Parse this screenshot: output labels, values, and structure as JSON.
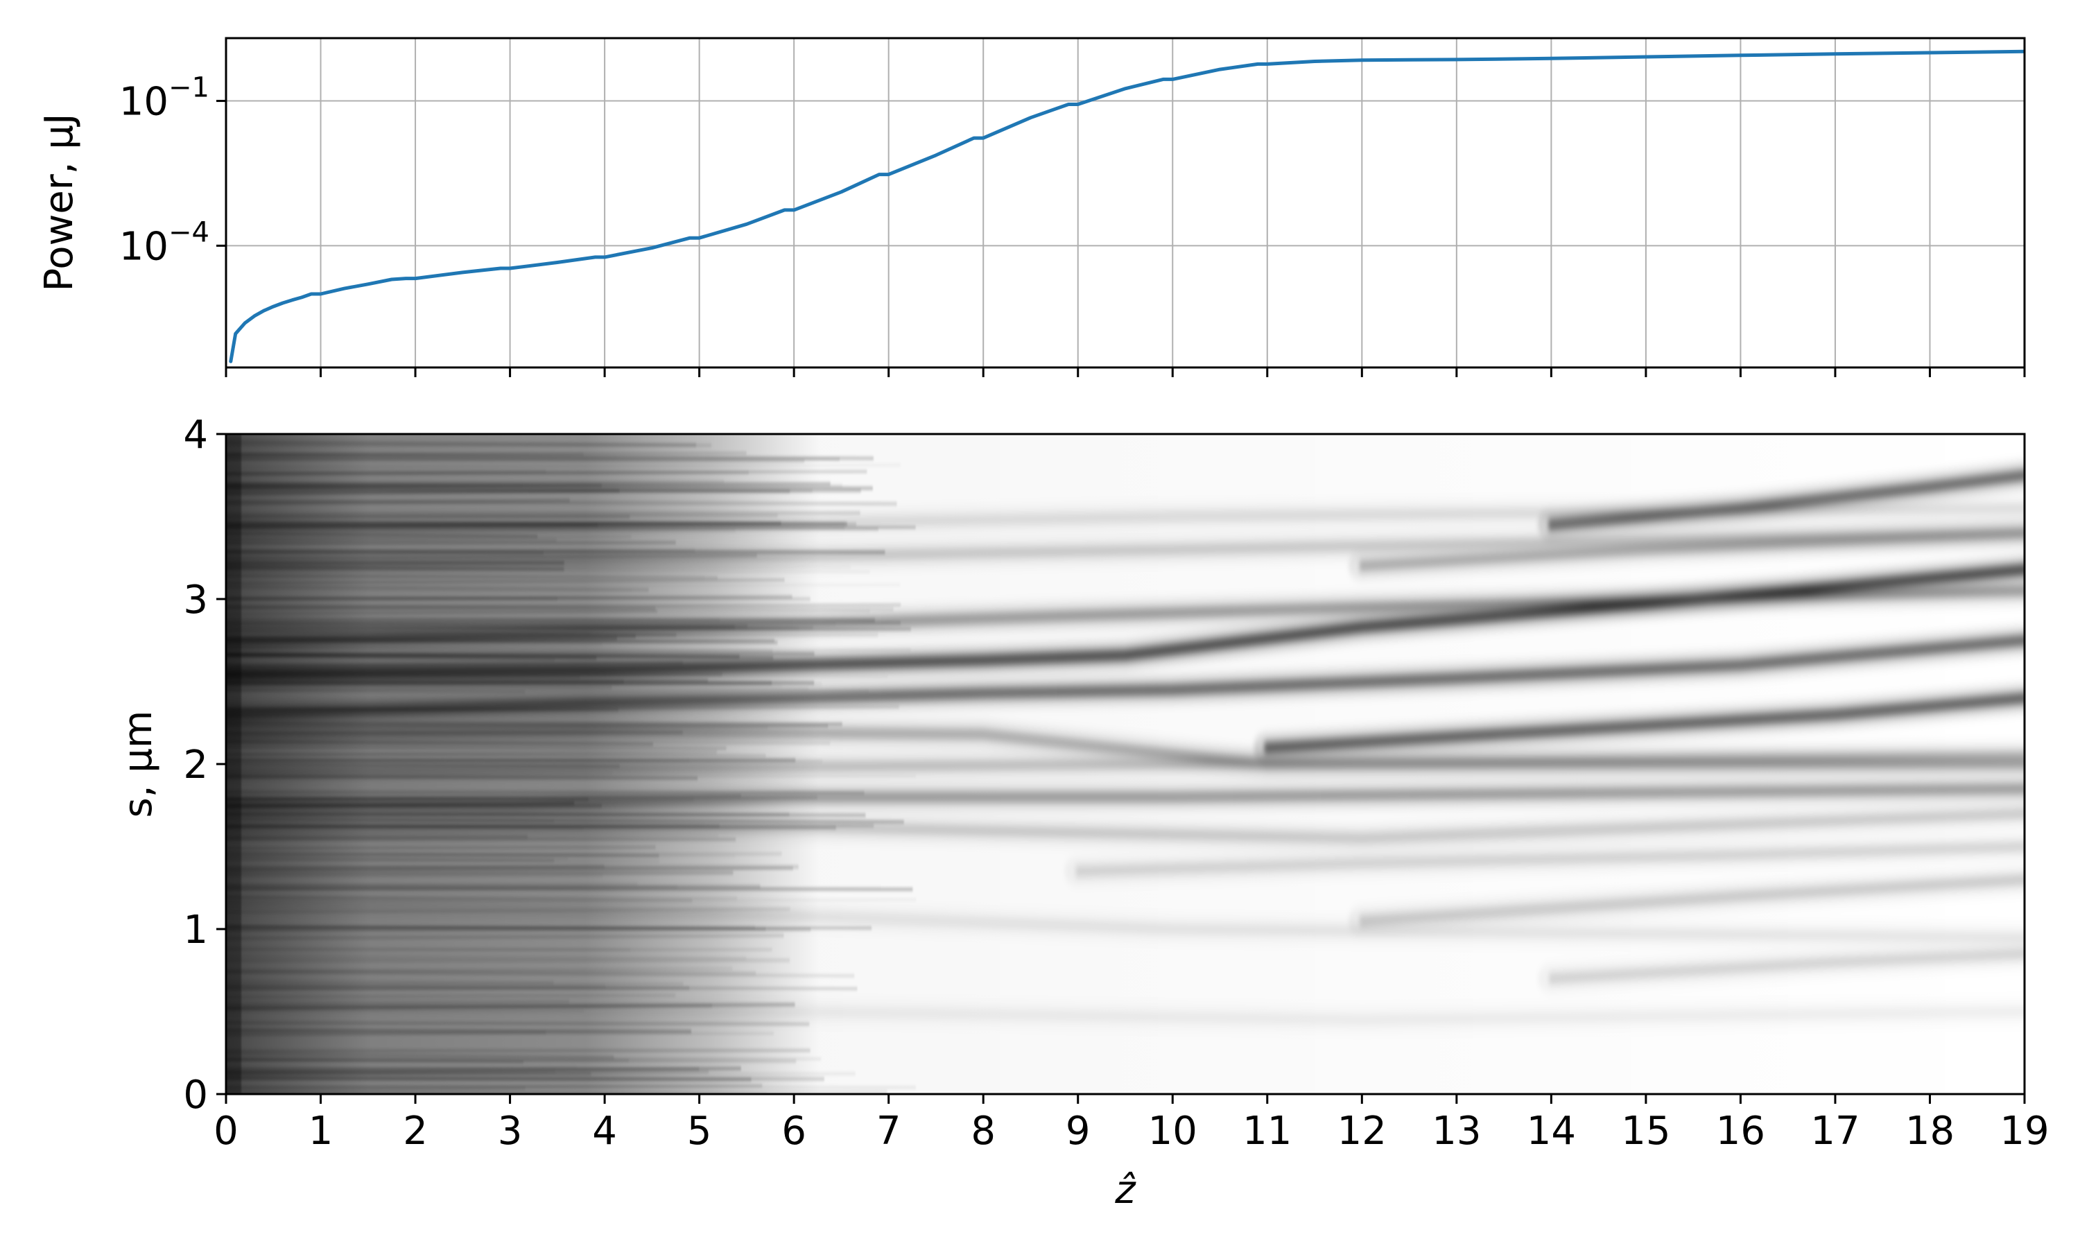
{
  "chart_data": [
    {
      "type": "line",
      "ylabel": "Power, μJ",
      "xlabel": "",
      "yscale": "log",
      "ylim": [
        3e-07,
        2.0
      ],
      "xlim": [
        0,
        19
      ],
      "grid": true,
      "y_ticks": [
        {
          "value": 0.1,
          "base": "10",
          "exp": "−1"
        },
        {
          "value": 0.0001,
          "base": "10",
          "exp": "−4"
        }
      ],
      "line_color": "#1f77b4",
      "series": [
        {
          "x": [
            0.05,
            0.1,
            0.2,
            0.3,
            0.4,
            0.5,
            0.6,
            0.7,
            0.8,
            0.9,
            1.0,
            1.25,
            1.5,
            1.75,
            1.9,
            2.0,
            2.5,
            2.9,
            3.0,
            3.5,
            3.9,
            4.0,
            4.5,
            4.9,
            5.0,
            5.5,
            5.9,
            6.0,
            6.5,
            6.9,
            7.0,
            7.5,
            7.9,
            8.0,
            8.5,
            8.9,
            9.0,
            9.5,
            9.9,
            10.0,
            10.5,
            10.9,
            11.0,
            11.5,
            12.0,
            13.0,
            14.0,
            15.0,
            16.0,
            17.0,
            18.0,
            19.0
          ],
          "y": [
            4e-07,
            1.5e-06,
            2.5e-06,
            3.5e-06,
            4.5e-06,
            5.5e-06,
            6.5e-06,
            7.5e-06,
            8.5e-06,
            1e-05,
            1e-05,
            1.3e-05,
            1.6e-05,
            2e-05,
            2.1e-05,
            2.1e-05,
            2.8e-05,
            3.4e-05,
            3.4e-05,
            4.5e-05,
            5.8e-05,
            5.8e-05,
            9e-05,
            0.000145,
            0.000145,
            0.00028,
            0.00055,
            0.00055,
            0.0013,
            0.003,
            0.003,
            0.0075,
            0.017,
            0.017,
            0.045,
            0.085,
            0.085,
            0.18,
            0.28,
            0.28,
            0.45,
            0.58,
            0.58,
            0.66,
            0.7,
            0.72,
            0.76,
            0.82,
            0.88,
            0.94,
            1.0,
            1.06
          ]
        }
      ]
    },
    {
      "type": "heatmap",
      "xlabel": "ẑ",
      "ylabel": "s, μm",
      "xlim": [
        0,
        19
      ],
      "ylim": [
        0,
        4
      ],
      "colormap": "gray_r",
      "x_ticks": [
        "0",
        "1",
        "2",
        "3",
        "4",
        "5",
        "6",
        "7",
        "8",
        "9",
        "10",
        "11",
        "12",
        "13",
        "14",
        "15",
        "16",
        "17",
        "18",
        "19"
      ],
      "y_ticks": [
        "0",
        "1",
        "2",
        "3",
        "4"
      ],
      "ridges": [
        {
          "x": [
            0,
            4.5,
            9,
            12,
            19
          ],
          "s": [
            2.73,
            2.82,
            2.9,
            2.95,
            3.05
          ],
          "darkness": 0.55
        },
        {
          "x": [
            0,
            4,
            8,
            9.5,
            12,
            15,
            19
          ],
          "s": [
            2.55,
            2.57,
            2.63,
            2.66,
            2.83,
            2.97,
            3.18
          ],
          "darkness": 0.95
        },
        {
          "x": [
            0,
            4,
            8,
            10,
            13,
            16,
            19
          ],
          "s": [
            2.3,
            2.37,
            2.43,
            2.45,
            2.52,
            2.6,
            2.75
          ],
          "darkness": 0.8
        },
        {
          "x": [
            11,
            14,
            17,
            19
          ],
          "s": [
            2.1,
            2.2,
            2.3,
            2.4
          ],
          "darkness": 0.85
        },
        {
          "x": [
            0,
            4,
            8,
            11,
            19
          ],
          "s": [
            2.17,
            2.2,
            2.18,
            2.0,
            2.0
          ],
          "darkness": 0.45
        },
        {
          "x": [
            0,
            3,
            6,
            10,
            19
          ],
          "s": [
            1.75,
            1.75,
            1.8,
            1.8,
            1.85
          ],
          "darkness": 0.55
        },
        {
          "x": [
            0,
            5,
            10,
            19
          ],
          "s": [
            1.95,
            1.98,
            2.0,
            2.05
          ],
          "darkness": 0.35
        },
        {
          "x": [
            14,
            16,
            18,
            19
          ],
          "s": [
            3.45,
            3.55,
            3.68,
            3.75
          ],
          "darkness": 0.8
        },
        {
          "x": [
            12,
            15,
            19
          ],
          "s": [
            3.2,
            3.3,
            3.4
          ],
          "darkness": 0.45
        },
        {
          "x": [
            0,
            5,
            10,
            19
          ],
          "s": [
            3.2,
            3.25,
            3.3,
            3.4
          ],
          "darkness": 0.3
        },
        {
          "x": [
            0,
            5,
            10,
            19
          ],
          "s": [
            3.4,
            3.45,
            3.5,
            3.55
          ],
          "darkness": 0.2
        },
        {
          "x": [
            0,
            6,
            12,
            19
          ],
          "s": [
            1.6,
            1.62,
            1.55,
            1.7
          ],
          "darkness": 0.3
        },
        {
          "x": [
            9,
            12,
            16,
            19
          ],
          "s": [
            1.35,
            1.4,
            1.45,
            1.5
          ],
          "darkness": 0.25
        },
        {
          "x": [
            12,
            16,
            19
          ],
          "s": [
            1.05,
            1.2,
            1.3
          ],
          "darkness": 0.3
        },
        {
          "x": [
            0,
            5,
            10,
            19
          ],
          "s": [
            1.15,
            1.1,
            1.0,
            0.95
          ],
          "darkness": 0.15
        },
        {
          "x": [
            14,
            17,
            19
          ],
          "s": [
            0.7,
            0.8,
            0.85
          ],
          "darkness": 0.25
        },
        {
          "x": [
            0,
            6,
            12,
            19
          ],
          "s": [
            0.55,
            0.5,
            0.45,
            0.5
          ],
          "darkness": 0.1
        }
      ]
    }
  ]
}
